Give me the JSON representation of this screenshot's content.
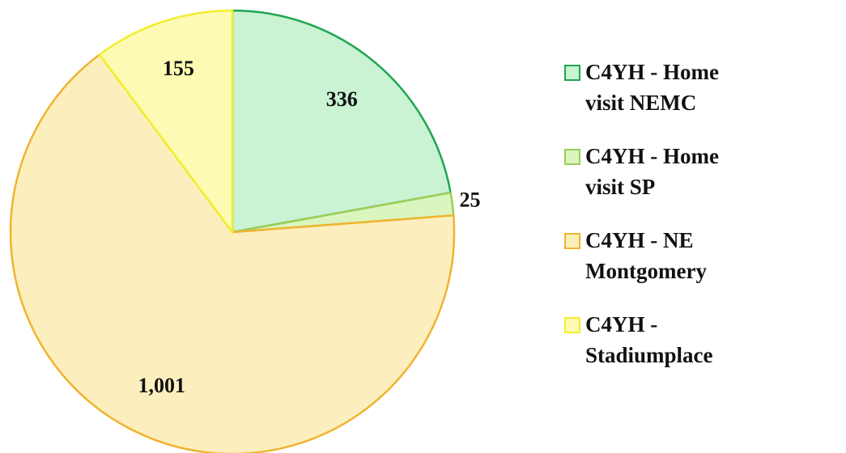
{
  "chart_data": {
    "type": "pie",
    "categories": [
      "C4YH - Home visit NEMC",
      "C4YH - Home visit SP",
      "C4YH - NE Montgomery",
      "C4YH - Stadiumplace"
    ],
    "values": [
      336,
      25,
      1001,
      155
    ],
    "value_labels": [
      "336",
      "25",
      "1,001",
      "155"
    ],
    "colors": [
      "#c9f3d2",
      "#daf5bd",
      "#fdefbd",
      "#fdfbb3"
    ],
    "edge_colors": [
      "#1fa650",
      "#9ccc58",
      "#f0b330",
      "#f2ee2a"
    ],
    "legend": "right"
  }
}
